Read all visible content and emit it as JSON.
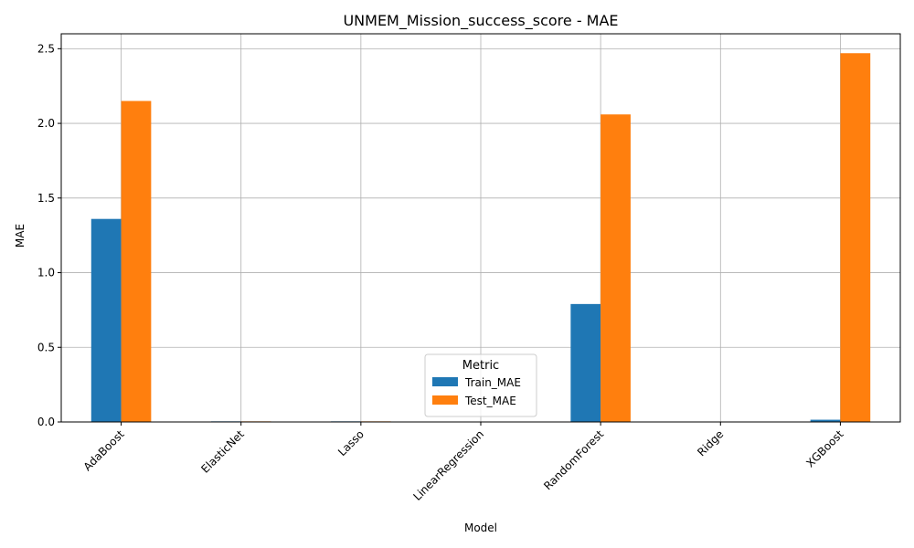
{
  "chart_data": {
    "type": "bar",
    "title": "UNMEM_Mission_success_score - MAE",
    "xlabel": "Model",
    "ylabel": "MAE",
    "categories": [
      "AdaBoost",
      "ElasticNet",
      "Lasso",
      "LinearRegression",
      "RandomForest",
      "Ridge",
      "XGBoost"
    ],
    "series": [
      {
        "name": "Train_MAE",
        "color": "#1f77b4",
        "values": [
          1.36,
          0.004,
          0.004,
          0.0,
          0.79,
          0.0,
          0.015
        ]
      },
      {
        "name": "Test_MAE",
        "color": "#ff7f0e",
        "values": [
          2.15,
          0.004,
          0.004,
          0.0,
          2.06,
          0.0,
          2.47
        ]
      }
    ],
    "ylim": [
      0,
      2.6
    ],
    "yticks": [
      0.0,
      0.5,
      1.0,
      1.5,
      2.0,
      2.5
    ],
    "ytick_labels": [
      "0.0",
      "0.5",
      "1.0",
      "1.5",
      "2.0",
      "2.5"
    ],
    "grid": true,
    "legend": {
      "title": "Metric",
      "placement": "lower-center"
    }
  }
}
